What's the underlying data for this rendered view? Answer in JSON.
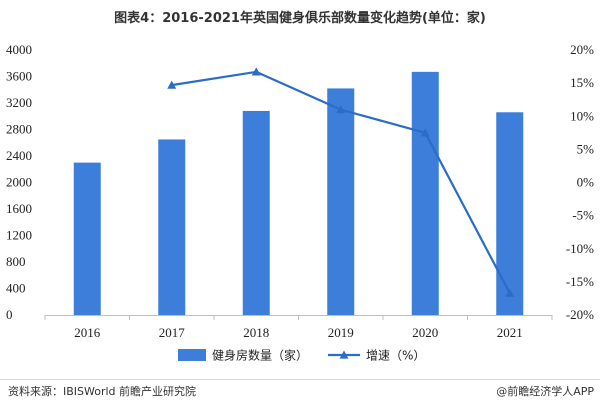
{
  "title": "图表4：2016-2021年英国健身俱乐部数量变化趋势(单位：家)",
  "footer": {
    "source": "资料来源：IBISWorld 前瞻产业研究院",
    "brand": "@前瞻经济学人APP"
  },
  "colors": {
    "bar": "#3D7EDB",
    "line": "#2A6CC7",
    "axis": "#bfbfbf"
  },
  "chart_data": {
    "type": "bar",
    "categories": [
      "2016",
      "2017",
      "2018",
      "2019",
      "2020",
      "2021"
    ],
    "series": [
      {
        "name": "健身房数量（家）",
        "type": "bar",
        "axis": "left",
        "values": [
          2300,
          2650,
          3080,
          3420,
          3670,
          3060
        ]
      },
      {
        "name": "增速（%）",
        "type": "line",
        "axis": "right",
        "values": [
          null,
          14.7,
          16.7,
          11.0,
          7.5,
          -16.7
        ]
      }
    ],
    "y_left": {
      "min": 0,
      "max": 4000,
      "step": 400,
      "ticks": [
        "0",
        "400",
        "800",
        "1200",
        "1600",
        "2000",
        "2400",
        "2800",
        "3200",
        "3600",
        "4000"
      ]
    },
    "y_right": {
      "min": -20,
      "max": 20,
      "step": 5,
      "ticks": [
        "-20%",
        "-15%",
        "-10%",
        "-5%",
        "0%",
        "5%",
        "10%",
        "15%",
        "20%"
      ]
    },
    "legend_position": "bottom",
    "grid": false
  }
}
